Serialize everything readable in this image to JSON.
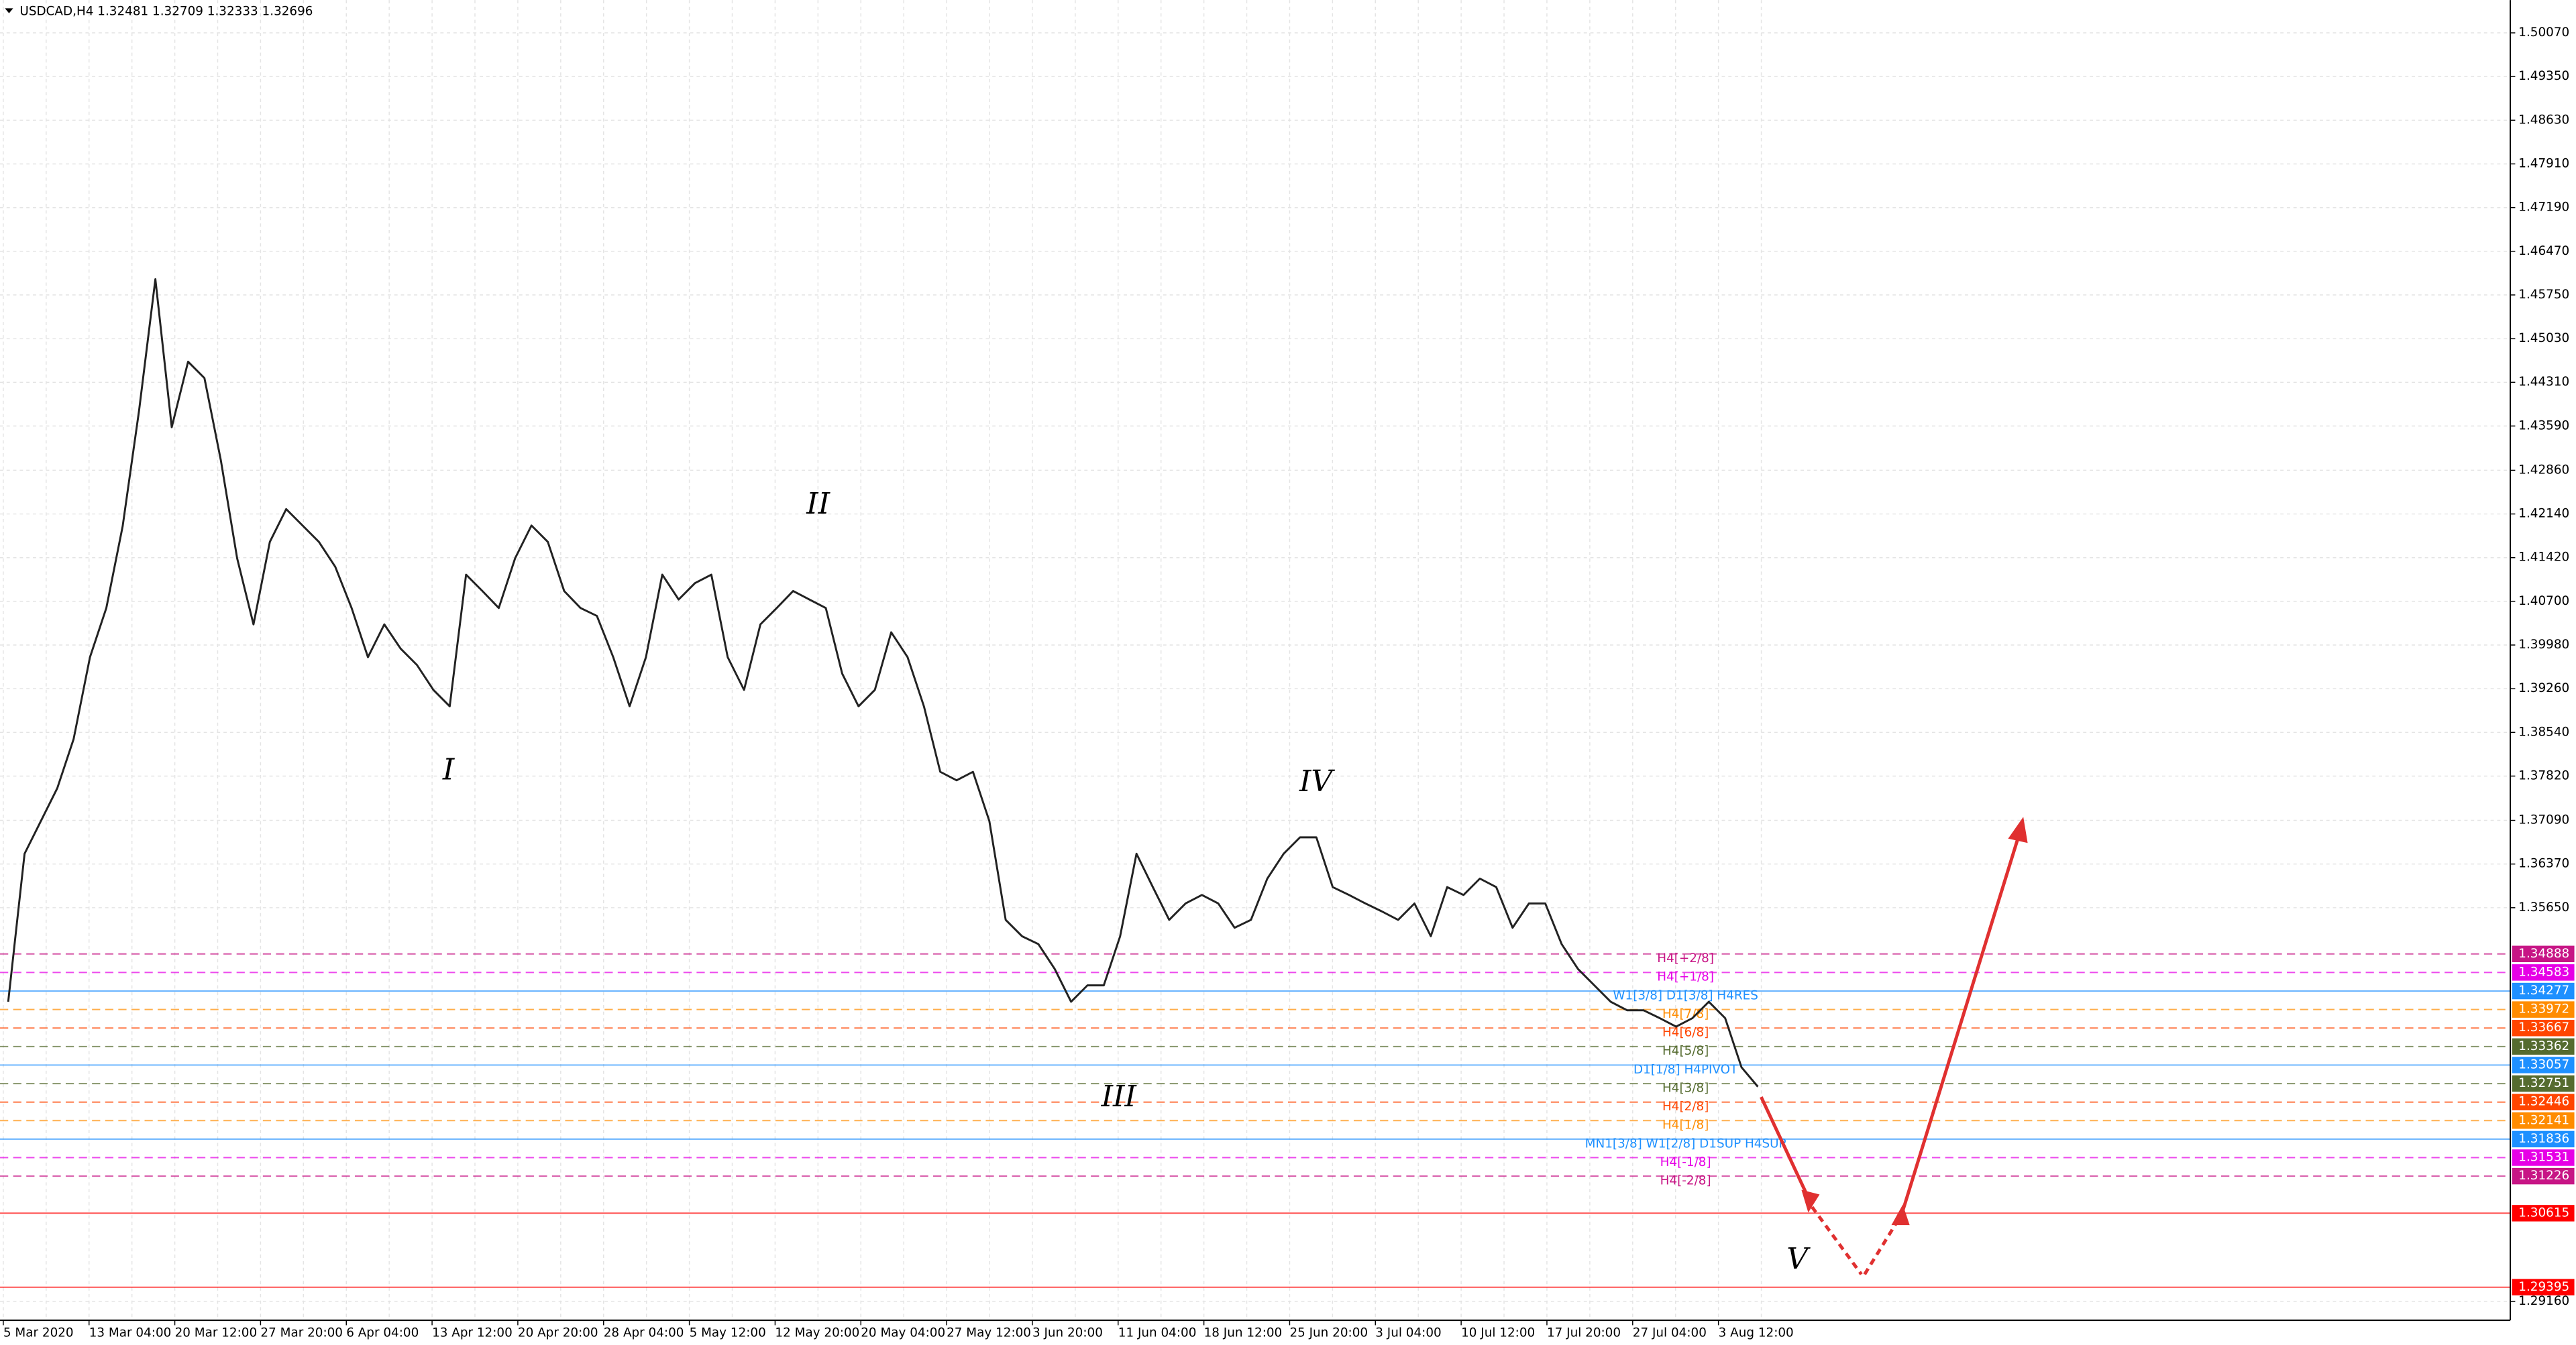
{
  "header": "USDCAD,H4  1.32481 1.32709 1.32333 1.32696",
  "price_axis": {
    "ylim": [
      1.2885,
      1.5061
    ],
    "yticks": [
      {
        "value": 1.5007,
        "label": "1.50070"
      },
      {
        "value": 1.4935,
        "label": "1.49350"
      },
      {
        "value": 1.4863,
        "label": "1.48630"
      },
      {
        "value": 1.4791,
        "label": "1.47910"
      },
      {
        "value": 1.4719,
        "label": "1.47190"
      },
      {
        "value": 1.4647,
        "label": "1.46470"
      },
      {
        "value": 1.4575,
        "label": "1.45750"
      },
      {
        "value": 1.4503,
        "label": "1.45030"
      },
      {
        "value": 1.4431,
        "label": "1.44310"
      },
      {
        "value": 1.4359,
        "label": "1.43590"
      },
      {
        "value": 1.4286,
        "label": "1.42860"
      },
      {
        "value": 1.4214,
        "label": "1.42140"
      },
      {
        "value": 1.4142,
        "label": "1.41420"
      },
      {
        "value": 1.407,
        "label": "1.40700"
      },
      {
        "value": 1.3998,
        "label": "1.39980"
      },
      {
        "value": 1.3926,
        "label": "1.39260"
      },
      {
        "value": 1.3854,
        "label": "1.38540"
      },
      {
        "value": 1.3782,
        "label": "1.37820"
      },
      {
        "value": 1.3709,
        "label": "1.37090"
      },
      {
        "value": 1.3637,
        "label": "1.36370"
      },
      {
        "value": 1.3565,
        "label": "1.35650"
      },
      {
        "value": 1.2916,
        "label": "1.29160"
      }
    ]
  },
  "time_axis": [
    "5 Mar 2020",
    "13 Mar 04:00",
    "20 Mar 12:00",
    "27 Mar 20:00",
    "6 Apr 04:00",
    "13 Apr 12:00",
    "20 Apr 20:00",
    "28 Apr 04:00",
    "5 May 12:00",
    "12 May 20:00",
    "20 May 04:00",
    "27 May 12:00",
    "3 Jun 20:00",
    "11 Jun 04:00",
    "18 Jun 12:00",
    "25 Jun 20:00",
    "3 Jul 04:00",
    "10 Jul 12:00",
    "17 Jul 20:00",
    "27 Jul 04:00",
    "3 Aug 12:00"
  ],
  "levels": [
    {
      "value": 1.34888,
      "color": "#c71585",
      "dashed": true,
      "label": "H4[+2/8]"
    },
    {
      "value": 1.34583,
      "color": "#e600e6",
      "dashed": true,
      "label": "H4[+1/8]"
    },
    {
      "value": 1.34277,
      "color": "#1e90ff",
      "dashed": false,
      "label": "W1[3/8] D1[3/8] H4RES"
    },
    {
      "value": 1.33972,
      "color": "#ff8c00",
      "dashed": true,
      "label": "H4[7/8]"
    },
    {
      "value": 1.33667,
      "color": "#ff4500",
      "dashed": true,
      "label": "H4[6/8]"
    },
    {
      "value": 1.33362,
      "color": "#556b2f",
      "dashed": true,
      "label": "H4[5/8]"
    },
    {
      "value": 1.33057,
      "color": "#1e90ff",
      "dashed": false,
      "label": "D1[1/8] H4PIVOT"
    },
    {
      "value": 1.32751,
      "color": "#556b2f",
      "dashed": true,
      "label": "H4[3/8]"
    },
    {
      "value": 1.32446,
      "color": "#ff4500",
      "dashed": true,
      "label": "H4[2/8]"
    },
    {
      "value": 1.32141,
      "color": "#ff8c00",
      "dashed": true,
      "label": "H4[1/8]"
    },
    {
      "value": 1.31836,
      "color": "#1e90ff",
      "dashed": false,
      "label": "MN1[3/8] W1[2/8] D1SUP H4SUP"
    },
    {
      "value": 1.31531,
      "color": "#e600e6",
      "dashed": true,
      "label": "H4[-1/8]"
    },
    {
      "value": 1.31226,
      "color": "#c71585",
      "dashed": true,
      "label": "H4[-2/8]"
    },
    {
      "value": 1.30615,
      "color": "#ff0000",
      "dashed": false
    },
    {
      "value": 1.29395,
      "color": "#ff0000",
      "dashed": false
    }
  ],
  "waves": [
    "I",
    "II",
    "III",
    "IV",
    "V"
  ],
  "price_path": [
    1.341,
    1.3654,
    1.3708,
    1.3762,
    1.3843,
    1.3978,
    1.4059,
    1.4194,
    1.4384,
    1.4601,
    1.4357,
    1.4465,
    1.4438,
    1.4303,
    1.4141,
    1.4032,
    1.4168,
    1.4222,
    1.4195,
    1.4168,
    1.4127,
    1.4059,
    1.3978,
    1.4032,
    1.3992,
    1.3965,
    1.3924,
    1.3897,
    1.4114,
    1.4087,
    1.4059,
    1.4141,
    1.4195,
    1.4168,
    1.4087,
    1.4059,
    1.4046,
    1.3978,
    1.3897,
    1.3978,
    1.4114,
    1.4073,
    1.41,
    1.4114,
    1.3978,
    1.3924,
    1.4032,
    1.4059,
    1.4087,
    1.4073,
    1.4059,
    1.3951,
    1.3897,
    1.3924,
    1.4019,
    1.3978,
    1.3897,
    1.3789,
    1.3775,
    1.3789,
    1.3708,
    1.3545,
    1.3518,
    1.3505,
    1.3464,
    1.341,
    1.3437,
    1.3437,
    1.3518,
    1.3654,
    1.3599,
    1.3545,
    1.3572,
    1.3586,
    1.3572,
    1.3532,
    1.3545,
    1.3613,
    1.3654,
    1.3681,
    1.3681,
    1.3599,
    1.3586,
    1.3572,
    1.3559,
    1.3545,
    1.3572,
    1.3518,
    1.3599,
    1.3586,
    1.3613,
    1.3599,
    1.3532,
    1.3572,
    1.3572,
    1.3505,
    1.3464,
    1.3437,
    1.341,
    1.3396,
    1.3396,
    1.3383,
    1.3369,
    1.3383,
    1.341,
    1.3383,
    1.3302,
    1.327
  ]
}
